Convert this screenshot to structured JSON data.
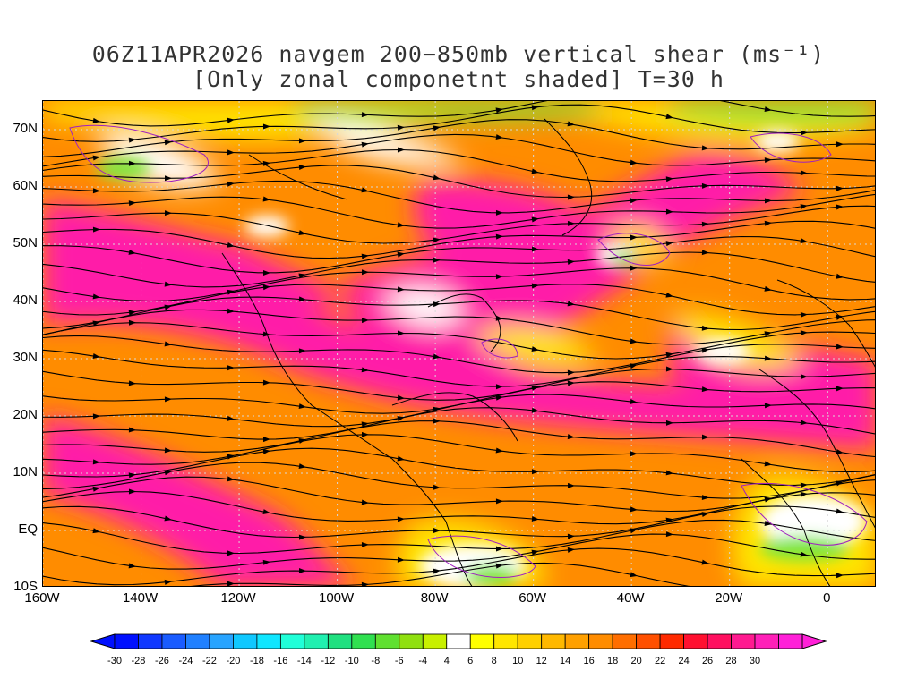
{
  "title": {
    "line1": "06Z11APR2026 navgem 200−850mb vertical shear (ms⁻¹)",
    "line2": "[Only zonal componetnt shaded] T=30 h"
  },
  "map": {
    "lat_labels": [
      "70N",
      "60N",
      "50N",
      "40N",
      "30N",
      "20N",
      "10N",
      "EQ",
      "10S"
    ],
    "lat_values": [
      70,
      60,
      50,
      40,
      30,
      20,
      10,
      0,
      -10
    ],
    "lon_labels": [
      "160W",
      "140W",
      "120W",
      "100W",
      "80W",
      "60W",
      "40W",
      "20W",
      "0"
    ],
    "lon_values": [
      -160,
      -140,
      -120,
      -100,
      -80,
      -60,
      -40,
      -20,
      0
    ],
    "lat_range": [
      -10,
      75
    ],
    "lon_range": [
      -160,
      10
    ],
    "shading_colors": {
      "strong_positive": "#ff1aa8",
      "positive": "#ff3a3a",
      "moderate": "#ff8c00",
      "weak": "#ffe600",
      "neutral": "#ffffff",
      "negative": "#7ee63a",
      "contour": "#a020c0",
      "streamline": "#000000",
      "grid": "#cccccc"
    }
  },
  "colorbar": {
    "labels": [
      "-30",
      "-28",
      "-26",
      "-24",
      "-22",
      "-20",
      "-18",
      "-16",
      "-14",
      "-12",
      "-10",
      "-8",
      "-6",
      "-4",
      "4",
      "6",
      "8",
      "10",
      "12",
      "14",
      "16",
      "18",
      "20",
      "22",
      "24",
      "26",
      "28",
      "30"
    ],
    "colors": [
      "#0010ff",
      "#1038ff",
      "#1a5cff",
      "#2080ff",
      "#28a4ff",
      "#10c8ff",
      "#10e6ff",
      "#20ffd8",
      "#20f0b0",
      "#20e080",
      "#30e050",
      "#60e030",
      "#90e010",
      "#c8f000",
      "#ffffff",
      "#ffff00",
      "#ffe600",
      "#ffd000",
      "#ffb800",
      "#ffa000",
      "#ff8c00",
      "#ff6e00",
      "#ff5000",
      "#ff2a00",
      "#ff1030",
      "#ff1060",
      "#ff1a90",
      "#ff20b8",
      "#ff20d8"
    ]
  }
}
